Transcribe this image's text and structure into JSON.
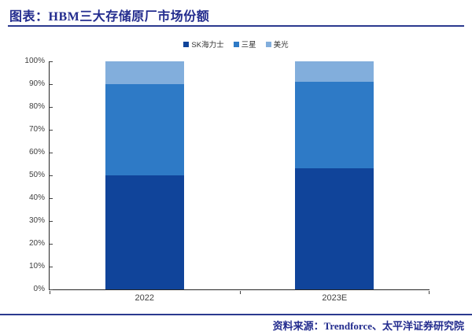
{
  "page": {
    "title": "图表：HBM三大存储原厂市场份额",
    "source": "资料来源：Trendforce、太平洋证券研究院"
  },
  "colors": {
    "accent_navy": "#232C8E",
    "rule_navy": "#2B3A8F",
    "axis": "#404040",
    "sk_hynix": "#10449A",
    "samsung": "#2E7AC6",
    "micron": "#82AEDC"
  },
  "chart_data": {
    "type": "bar",
    "stacked": true,
    "title": "图表：HBM三大存储原厂市场份额",
    "categories": [
      "2022",
      "2023E"
    ],
    "series": [
      {
        "name": "SK海力士",
        "values": [
          50,
          53
        ],
        "color": "#10449A"
      },
      {
        "name": "三星",
        "values": [
          40,
          38
        ],
        "color": "#2E7AC6"
      },
      {
        "name": "美光",
        "values": [
          10,
          9
        ],
        "color": "#82AEDC"
      }
    ],
    "xlabel": "",
    "ylabel": "",
    "ylim": [
      0,
      100
    ],
    "ytick_step": 10,
    "ytick_suffix": "%",
    "legend_position": "top-center",
    "grid": false
  }
}
